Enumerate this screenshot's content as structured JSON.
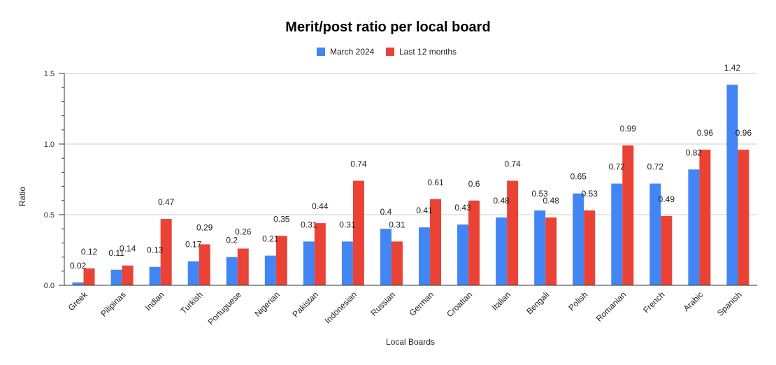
{
  "chart_data": {
    "type": "bar",
    "title": "Merit/post ratio per local board",
    "xlabel": "Local Boards",
    "ylabel": "Ratio",
    "ylim": [
      0,
      1.5
    ],
    "yticks": [
      "0.0",
      "0.5",
      "1.0",
      "1.5"
    ],
    "grid": true,
    "legend_position": "top",
    "categories": [
      "Greek",
      "Pilipinas",
      "Indian",
      "Turkish",
      "Portuguese",
      "Nigerian",
      "Pakistan",
      "Indonesian",
      "Russian",
      "German",
      "Croatian",
      "Italian",
      "Bengali",
      "Polish",
      "Romanian",
      "French",
      "Arabic",
      "Spanish"
    ],
    "series": [
      {
        "name": "March 2024",
        "color": "#4285F4",
        "values": [
          0.02,
          0.11,
          0.13,
          0.17,
          0.2,
          0.21,
          0.31,
          0.31,
          0.4,
          0.41,
          0.43,
          0.48,
          0.53,
          0.65,
          0.72,
          0.72,
          0.82,
          1.42
        ]
      },
      {
        "name": "Last 12 months",
        "color": "#EA4335",
        "values": [
          0.12,
          0.14,
          0.47,
          0.29,
          0.26,
          0.35,
          0.44,
          0.74,
          0.31,
          0.61,
          0.6,
          0.74,
          0.48,
          0.53,
          0.99,
          0.49,
          0.96,
          0.96
        ]
      }
    ]
  }
}
